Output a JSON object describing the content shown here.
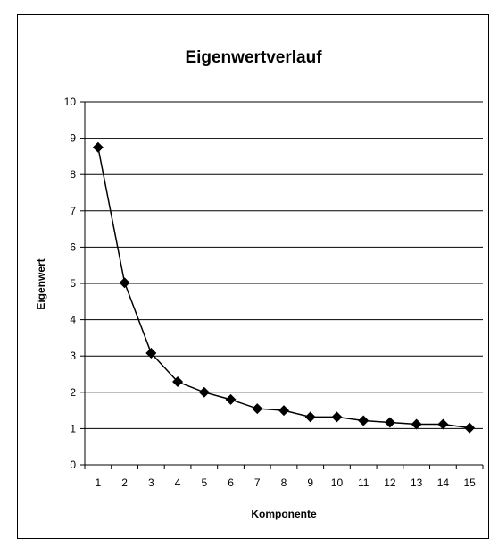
{
  "chart_data": {
    "type": "line",
    "title": "Eigenwertverlauf",
    "xlabel": "Komponente",
    "ylabel": "Eigenwert",
    "x": [
      1,
      2,
      3,
      4,
      5,
      6,
      7,
      8,
      9,
      10,
      11,
      12,
      13,
      14,
      15
    ],
    "series": [
      {
        "values": [
          8.75,
          5.02,
          3.08,
          2.29,
          2.0,
          1.8,
          1.55,
          1.5,
          1.32,
          1.32,
          1.22,
          1.17,
          1.12,
          1.12,
          1.02
        ]
      }
    ],
    "ylim": [
      0,
      10
    ],
    "yticks": [
      0,
      1,
      2,
      3,
      4,
      5,
      6,
      7,
      8,
      9,
      10
    ],
    "grid": "horizontal",
    "legend": "none",
    "marker": "diamond",
    "line_color": "#000000",
    "grid_color": "#000000"
  }
}
